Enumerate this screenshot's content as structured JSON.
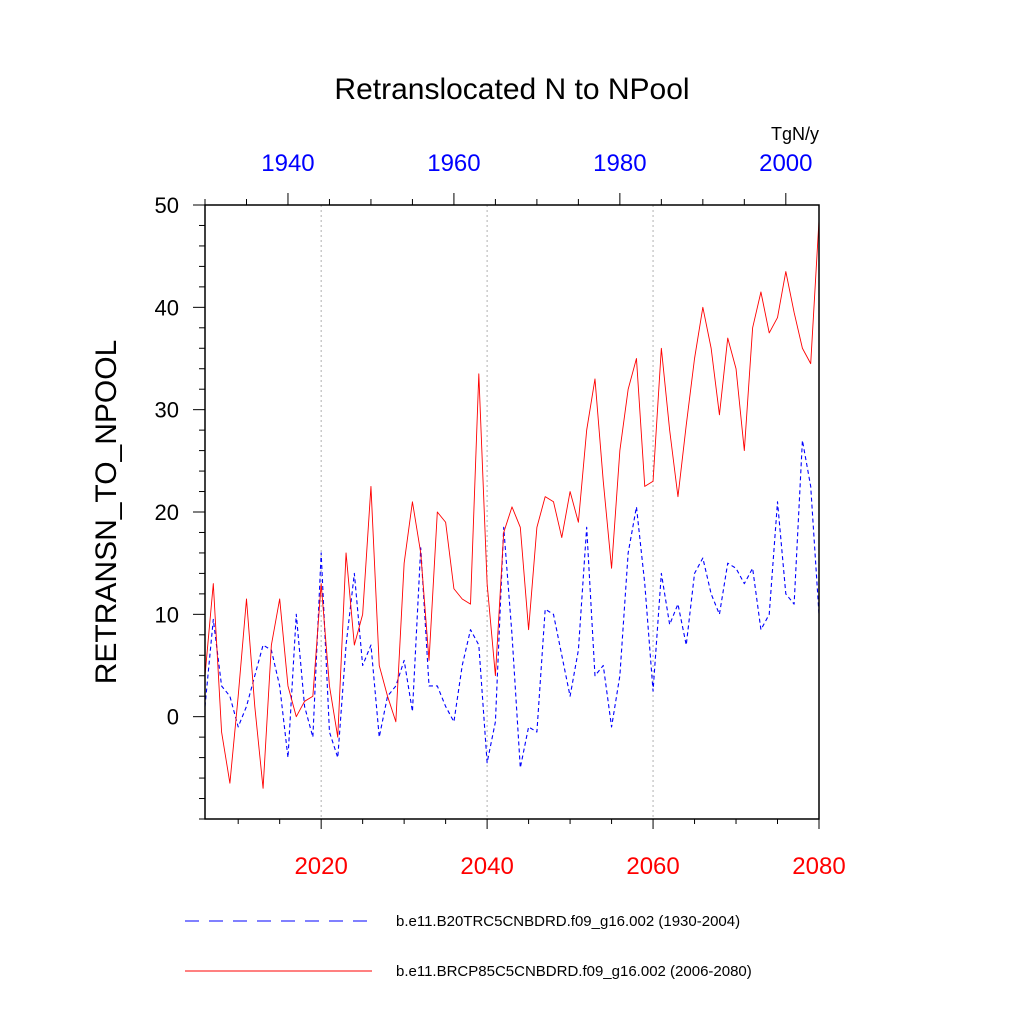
{
  "chart_data": {
    "type": "line",
    "title": "Retranslocated N to NPool",
    "ylabel": "RETRANSN_TO_NPOOL",
    "units": "TgN/y",
    "ylim": [
      -10,
      50
    ],
    "yticks": [
      0,
      10,
      20,
      30,
      40,
      50
    ],
    "ytick_labels": [
      "0",
      "10",
      "20",
      "30",
      "40",
      "50"
    ],
    "bottom_axis": {
      "range": [
        2006,
        2080
      ],
      "ticks": [
        2020,
        2040,
        2060,
        2080
      ],
      "tick_labels": [
        "2020",
        "2040",
        "2060",
        "2080"
      ],
      "color": "#ff0000"
    },
    "top_axis": {
      "range": [
        1930,
        2004
      ],
      "ticks": [
        1940,
        1960,
        1980,
        2000
      ],
      "tick_labels": [
        "1940",
        "1960",
        "1980",
        "2000"
      ],
      "color": "#0000ff"
    },
    "grid": "vertical dotted at major bottom ticks",
    "series": [
      {
        "name": "b.e11.B20TRC5CNBDRD.f09_g16.002 (1930-2004)",
        "axis": "top",
        "color": "#0000ff",
        "style": "dashed",
        "x": [
          1930,
          1931,
          1932,
          1933,
          1934,
          1935,
          1936,
          1937,
          1938,
          1939,
          1940,
          1941,
          1942,
          1943,
          1944,
          1945,
          1946,
          1947,
          1948,
          1949,
          1950,
          1951,
          1952,
          1953,
          1954,
          1955,
          1956,
          1957,
          1958,
          1959,
          1960,
          1961,
          1962,
          1963,
          1964,
          1965,
          1966,
          1967,
          1968,
          1969,
          1970,
          1971,
          1972,
          1973,
          1974,
          1975,
          1976,
          1977,
          1978,
          1979,
          1980,
          1981,
          1982,
          1983,
          1984,
          1985,
          1986,
          1987,
          1988,
          1989,
          1990,
          1991,
          1992,
          1993,
          1994,
          1995,
          1996,
          1997,
          1998,
          1999,
          2000,
          2001,
          2002,
          2003,
          2004
        ],
        "values": [
          1.0,
          9.5,
          3.0,
          2.0,
          -1.0,
          1.0,
          4.0,
          7.0,
          6.5,
          3.0,
          -4.0,
          10.0,
          1.0,
          -2.0,
          16.0,
          -1.5,
          -4.0,
          7.0,
          14.0,
          5.0,
          7.0,
          -2.0,
          2.0,
          3.0,
          5.5,
          0.5,
          16.5,
          3.0,
          3.0,
          1.0,
          -0.5,
          5.0,
          8.5,
          7.0,
          -4.5,
          -0.5,
          18.5,
          8.0,
          -5.0,
          -1.0,
          -1.5,
          10.5,
          10.0,
          6.0,
          2.0,
          6.5,
          18.5,
          4.0,
          5.0,
          -1.0,
          4.0,
          16.0,
          20.5,
          13.0,
          2.5,
          14.0,
          9.0,
          11.0,
          7.0,
          14.0,
          15.5,
          12.0,
          10.0,
          15.0,
          14.5,
          13.0,
          14.5,
          8.5,
          10.0,
          21.0,
          12.0,
          11.0,
          27.0,
          22.5,
          10.0
        ]
      },
      {
        "name": "b.e11.BRCP85C5CNBDRD.f09_g16.002 (2006-2080)",
        "axis": "bottom",
        "color": "#ff0000",
        "style": "solid",
        "x": [
          2006,
          2007,
          2008,
          2009,
          2010,
          2011,
          2012,
          2013,
          2014,
          2015,
          2016,
          2017,
          2018,
          2019,
          2020,
          2021,
          2022,
          2023,
          2024,
          2025,
          2026,
          2027,
          2028,
          2029,
          2030,
          2031,
          2032,
          2033,
          2034,
          2035,
          2036,
          2037,
          2038,
          2039,
          2040,
          2041,
          2042,
          2043,
          2044,
          2045,
          2046,
          2047,
          2048,
          2049,
          2050,
          2051,
          2052,
          2053,
          2054,
          2055,
          2056,
          2057,
          2058,
          2059,
          2060,
          2061,
          2062,
          2063,
          2064,
          2065,
          2066,
          2067,
          2068,
          2069,
          2070,
          2071,
          2072,
          2073,
          2074,
          2075,
          2076,
          2077,
          2078,
          2079,
          2080
        ],
        "values": [
          4.0,
          13.0,
          -1.5,
          -6.5,
          2.0,
          11.5,
          1.0,
          -7.0,
          7.0,
          11.5,
          3.0,
          0.0,
          1.5,
          2.0,
          13.0,
          3.0,
          -2.0,
          16.0,
          7.0,
          10.0,
          22.5,
          5.0,
          2.0,
          -0.5,
          15.0,
          21.0,
          16.0,
          5.5,
          20.0,
          19.0,
          12.5,
          11.5,
          11.0,
          33.5,
          13.0,
          4.0,
          18.0,
          20.5,
          18.5,
          8.5,
          18.5,
          21.5,
          21.0,
          17.5,
          22.0,
          19.0,
          28.0,
          33.0,
          23.0,
          14.5,
          26.0,
          32.0,
          35.0,
          22.5,
          23.0,
          36.0,
          28.0,
          21.5,
          28.5,
          35.0,
          40.0,
          36.0,
          29.5,
          37.0,
          34.0,
          26.0,
          38.0,
          41.5,
          37.5,
          39.0,
          43.5,
          39.5,
          36.0,
          34.5,
          48.5
        ]
      }
    ],
    "legend": {
      "placement": "bottom",
      "entries": [
        "b.e11.B20TRC5CNBDRD.f09_g16.002 (1930-2004)",
        "b.e11.BRCP85C5CNBDRD.f09_g16.002 (2006-2080)"
      ]
    }
  }
}
